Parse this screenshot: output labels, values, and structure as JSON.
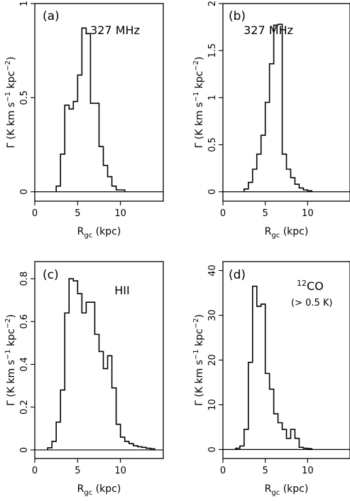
{
  "chart_data": [
    {
      "id": "a",
      "type": "line",
      "panel_label": "(a)",
      "annotation": [
        "327 MHz"
      ],
      "xlabel": {
        "main": "R",
        "sub": "gc",
        "rest": " (kpc)"
      },
      "ylabel": {
        "main": "Γ (K km s",
        "sup1": "−1",
        "mid": " kpc",
        "sup2": "−2",
        "end": ")"
      },
      "xlim": [
        0,
        15
      ],
      "ylim": [
        -0.05,
        1.0
      ],
      "xticks": [
        0,
        5,
        10
      ],
      "yticks": [
        0,
        0.5,
        1
      ],
      "ytick_labels": [
        "0",
        "0.5",
        "1"
      ],
      "bin_width": 0.5,
      "x": [
        2.5,
        3.0,
        3.5,
        4.0,
        4.5,
        5.0,
        5.5,
        6.0,
        6.5,
        7.0,
        7.5,
        8.0,
        8.5,
        9.0,
        9.5,
        10.0
      ],
      "values": [
        0.03,
        0.2,
        0.46,
        0.44,
        0.48,
        0.62,
        0.87,
        0.84,
        0.47,
        0.47,
        0.24,
        0.14,
        0.08,
        0.03,
        0.01,
        0.01
      ]
    },
    {
      "id": "b",
      "type": "line",
      "panel_label": "(b)",
      "annotation": [
        "327 MHz"
      ],
      "xlabel": {
        "main": "R",
        "sub": "gc",
        "rest": " (kpc)"
      },
      "ylabel": {
        "main": "Γ (K km s",
        "sup1": "−1",
        "mid": " kpc",
        "sup2": "−2",
        "end": ")"
      },
      "xlim": [
        0,
        15
      ],
      "ylim": [
        -0.1,
        2.0
      ],
      "xticks": [
        0,
        5,
        10
      ],
      "yticks": [
        0,
        0.5,
        1,
        1.5,
        2
      ],
      "ytick_labels": [
        "0",
        "0.5",
        "1",
        "1.5",
        "2"
      ],
      "bin_width": 0.5,
      "x": [
        2.5,
        3.0,
        3.5,
        4.0,
        4.5,
        5.0,
        5.5,
        6.0,
        6.5,
        7.0,
        7.5,
        8.0,
        8.5,
        9.0,
        9.5,
        10.0
      ],
      "values": [
        0.03,
        0.1,
        0.24,
        0.4,
        0.6,
        0.95,
        1.36,
        1.77,
        1.78,
        0.4,
        0.24,
        0.15,
        0.08,
        0.04,
        0.02,
        0.01
      ]
    },
    {
      "id": "c",
      "type": "line",
      "panel_label": "(c)",
      "annotation": [
        "HII"
      ],
      "xlabel": {
        "main": "R",
        "sub": "gc",
        "rest": " (kpc)"
      },
      "ylabel": {
        "main": "Γ (K km s",
        "sup1": "−1",
        "mid": " kpc",
        "sup2": "−2",
        "end": ")"
      },
      "xlim": [
        0,
        15
      ],
      "ylim": [
        -0.04,
        0.88
      ],
      "xticks": [
        0,
        5,
        10
      ],
      "yticks": [
        0,
        0.2,
        0.4,
        0.6,
        0.8
      ],
      "ytick_labels": [
        "0",
        "0.2",
        "0.4",
        "0.6",
        "0.8"
      ],
      "bin_width": 0.5,
      "x": [
        1.5,
        2.0,
        2.5,
        3.0,
        3.5,
        4.0,
        4.5,
        5.0,
        5.5,
        6.0,
        6.5,
        7.0,
        7.5,
        8.0,
        8.5,
        9.0,
        9.5,
        10.0,
        10.5,
        11.0,
        11.5,
        12.0,
        12.5,
        13.0,
        13.5
      ],
      "values": [
        0.01,
        0.04,
        0.13,
        0.28,
        0.64,
        0.8,
        0.79,
        0.73,
        0.64,
        0.69,
        0.69,
        0.54,
        0.46,
        0.38,
        0.44,
        0.29,
        0.12,
        0.06,
        0.04,
        0.03,
        0.02,
        0.015,
        0.012,
        0.008,
        0.005
      ]
    },
    {
      "id": "d",
      "type": "line",
      "panel_label": "(d)",
      "annotation": [
        "CO",
        "(> 0.5 K)"
      ],
      "annotation_sup": "12",
      "xlabel": {
        "main": "R",
        "sub": "gc",
        "rest": " (kpc)"
      },
      "ylabel": {
        "main": "Γ (K km s",
        "sup1": "−1",
        "mid": " kpc",
        "sup2": "−2",
        "end": ")"
      },
      "xlim": [
        0,
        15
      ],
      "ylim": [
        -2,
        42
      ],
      "xticks": [
        0,
        5,
        10
      ],
      "yticks": [
        0,
        10,
        20,
        30,
        40
      ],
      "ytick_labels": [
        "0",
        "10",
        "20",
        "30",
        "40"
      ],
      "bin_width": 0.5,
      "x": [
        1.5,
        2.0,
        2.5,
        3.0,
        3.5,
        4.0,
        4.5,
        5.0,
        5.5,
        6.0,
        6.5,
        7.0,
        7.5,
        8.0,
        8.5,
        9.0,
        9.5,
        10.0
      ],
      "values": [
        0.3,
        0.8,
        4.5,
        19.5,
        36.5,
        32,
        32.5,
        17,
        13.5,
        8,
        6,
        4.5,
        2.5,
        4.5,
        2.5,
        0.5,
        0.3,
        0.2
      ]
    }
  ]
}
